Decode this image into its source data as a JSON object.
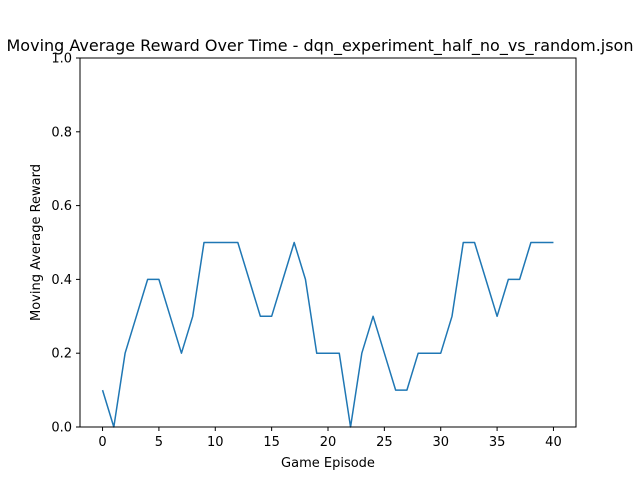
{
  "chart_data": {
    "type": "line",
    "title": "Moving Average Reward Over Time - dqn_experiment_half_no_vs_random.json",
    "xlabel": "Game Episode",
    "ylabel": "Moving Average Reward",
    "xlim": [
      -2,
      42
    ],
    "ylim": [
      0,
      1
    ],
    "xticks": [
      0,
      5,
      10,
      15,
      20,
      25,
      30,
      35,
      40
    ],
    "yticks": [
      0.0,
      0.2,
      0.4,
      0.6,
      0.8,
      1.0
    ],
    "ytick_labels": [
      "0.0",
      "0.2",
      "0.4",
      "0.6",
      "0.8",
      "1.0"
    ],
    "grid": false,
    "series": [
      {
        "color": "#1f77b4",
        "x": [
          0,
          1,
          2,
          3,
          4,
          5,
          6,
          7,
          8,
          9,
          10,
          11,
          12,
          13,
          14,
          15,
          16,
          17,
          18,
          19,
          20,
          21,
          22,
          23,
          24,
          25,
          26,
          27,
          28,
          29,
          30,
          31,
          32,
          33,
          34,
          35,
          36,
          37,
          38,
          39,
          40
        ],
        "values": [
          0.1,
          0.0,
          0.2,
          0.3,
          0.4,
          0.4,
          0.3,
          0.2,
          0.3,
          0.5,
          0.5,
          0.5,
          0.5,
          0.4,
          0.3,
          0.3,
          0.4,
          0.5,
          0.4,
          0.2,
          0.2,
          0.2,
          0.0,
          0.2,
          0.3,
          0.2,
          0.1,
          0.1,
          0.2,
          0.2,
          0.2,
          0.3,
          0.5,
          0.5,
          0.4,
          0.3,
          0.4,
          0.4,
          0.5,
          0.5,
          0.5
        ]
      }
    ]
  }
}
